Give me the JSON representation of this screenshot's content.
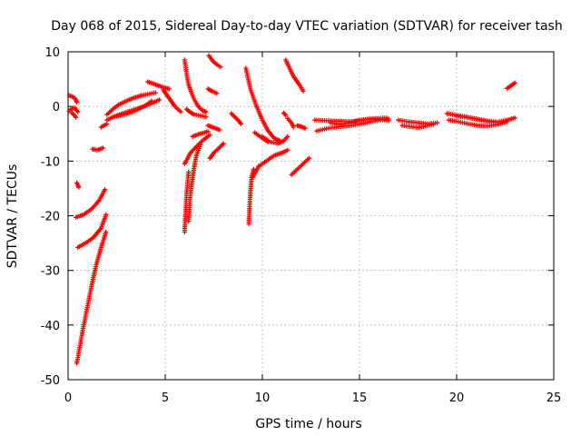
{
  "chart_data": {
    "type": "scatter",
    "title": "Day 068 of 2015, Sidereal Day-to-day VTEC variation (SDTVAR) for receiver tash",
    "xlabel": "GPS time / hours",
    "ylabel": "SDTVAR / TECUs",
    "xlim": [
      0,
      25
    ],
    "ylim": [
      -50,
      10
    ],
    "xticks": [
      0,
      5,
      10,
      15,
      20,
      25
    ],
    "yticks": [
      -50,
      -40,
      -30,
      -20,
      -10,
      0,
      10
    ],
    "grid": true,
    "marker": "+",
    "color": "#ff0000",
    "series": [
      {
        "name": "tash",
        "segments": [
          {
            "x": [
              0.05,
              0.2,
              0.35,
              0.45
            ],
            "y": [
              2.0,
              1.8,
              1.5,
              0.8
            ]
          },
          {
            "x": [
              0.05,
              0.2,
              0.35,
              0.5
            ],
            "y": [
              -0.8,
              -0.4,
              -0.3,
              -1.0
            ]
          },
          {
            "x": [
              0.2,
              0.3,
              0.4
            ],
            "y": [
              -1.2,
              -1.5,
              -2.0
            ]
          },
          {
            "x": [
              0.45,
              0.55
            ],
            "y": [
              -14.0,
              -14.8
            ]
          },
          {
            "x": [
              0.4,
              0.8,
              1.2,
              1.6,
              1.9
            ],
            "y": [
              -20.3,
              -19.8,
              -18.8,
              -17.2,
              -15.2
            ]
          },
          {
            "x": [
              0.5,
              0.9,
              1.3,
              1.7,
              1.95
            ],
            "y": [
              -25.8,
              -25.0,
              -24.0,
              -22.3,
              -19.8
            ]
          },
          {
            "x": [
              0.45,
              0.7,
              0.95,
              1.2,
              1.45,
              1.7,
              1.95
            ],
            "y": [
              -47.0,
              -42.0,
              -37.5,
              -33.0,
              -29.0,
              -25.8,
              -23.0
            ]
          },
          {
            "x": [
              1.25,
              1.5,
              1.8
            ],
            "y": [
              -7.8,
              -8.0,
              -7.6
            ]
          },
          {
            "x": [
              1.7,
              1.85,
              2.0
            ],
            "y": [
              -3.8,
              -3.5,
              -3.2
            ]
          },
          {
            "x": [
              2.0,
              2.3,
              2.6,
              3.0,
              3.4,
              3.8,
              4.2,
              4.5
            ],
            "y": [
              -1.5,
              -0.5,
              0.3,
              1.0,
              1.6,
              2.0,
              2.3,
              2.5
            ]
          },
          {
            "x": [
              2.0,
              2.4,
              2.9,
              3.4,
              3.9,
              4.3,
              4.7
            ],
            "y": [
              -2.5,
              -1.8,
              -1.2,
              -0.6,
              0.0,
              0.6,
              1.2
            ]
          },
          {
            "x": [
              2.5,
              3.0,
              3.5,
              4.0,
              4.3
            ],
            "y": [
              -1.8,
              -1.4,
              -0.7,
              0.2,
              1.0
            ]
          },
          {
            "x": [
              4.1,
              4.5,
              4.8,
              5.2
            ],
            "y": [
              4.5,
              4.0,
              3.6,
              3.2
            ]
          },
          {
            "x": [
              4.9,
              5.1,
              5.3,
              5.5,
              5.8
            ],
            "y": [
              3.0,
              2.0,
              1.0,
              0.0,
              -1.0
            ]
          },
          {
            "x": [
              6.0,
              6.1,
              6.2,
              6.35,
              6.5,
              6.7,
              6.9,
              7.1
            ],
            "y": [
              8.5,
              6.0,
              4.0,
              2.5,
              1.2,
              0.0,
              -0.7,
              -1.0
            ]
          },
          {
            "x": [
              6.1,
              6.3,
              6.5,
              6.8,
              7.1
            ],
            "y": [
              -0.5,
              -1.1,
              -1.5,
              -1.7,
              -1.9
            ]
          },
          {
            "x": [
              7.25,
              7.4,
              7.6,
              7.85
            ],
            "y": [
              9.3,
              8.5,
              7.8,
              7.2
            ]
          },
          {
            "x": [
              7.2,
              7.4,
              7.65
            ],
            "y": [
              3.2,
              2.8,
              2.4
            ]
          },
          {
            "x": [
              6.0,
              6.05,
              6.1,
              6.2
            ],
            "y": [
              -23.0,
              -19.5,
              -16.0,
              -12.0
            ]
          },
          {
            "x": [
              6.2,
              6.3,
              6.45,
              6.6,
              6.8
            ],
            "y": [
              -21.0,
              -16.0,
              -12.0,
              -9.0,
              -7.0
            ]
          },
          {
            "x": [
              6.0,
              6.3,
              6.7,
              7.0,
              7.3
            ],
            "y": [
              -10.5,
              -8.5,
              -7.0,
              -6.0,
              -5.2
            ]
          },
          {
            "x": [
              6.4,
              6.8,
              7.2
            ],
            "y": [
              -5.5,
              -5.0,
              -4.6
            ]
          },
          {
            "x": [
              7.3,
              7.5,
              7.8,
              8.0
            ],
            "y": [
              -9.5,
              -8.5,
              -7.5,
              -6.8
            ]
          },
          {
            "x": [
              7.2,
              7.5,
              7.8
            ],
            "y": [
              -3.5,
              -3.9,
              -4.3
            ]
          },
          {
            "x": [
              8.4,
              8.6,
              8.8,
              8.9
            ],
            "y": [
              -1.3,
              -2.0,
              -2.7,
              -3.2
            ]
          },
          {
            "x": [
              9.15,
              9.4,
              9.7,
              10.0,
              10.3,
              10.6,
              10.9
            ],
            "y": [
              7.0,
              3.0,
              0.0,
              -2.5,
              -4.5,
              -5.8,
              -6.3
            ]
          },
          {
            "x": [
              9.3,
              9.35,
              9.4,
              9.45,
              9.55
            ],
            "y": [
              -21.5,
              -18.0,
              -15.0,
              -13.0,
              -11.5
            ]
          },
          {
            "x": [
              9.5,
              9.8,
              10.2,
              10.6,
              11.0,
              11.3
            ],
            "y": [
              -13.0,
              -11.0,
              -10.0,
              -9.0,
              -8.5,
              -8.0
            ]
          },
          {
            "x": [
              9.6,
              10.0,
              10.3
            ],
            "y": [
              -4.8,
              -5.8,
              -6.5
            ]
          },
          {
            "x": [
              10.0,
              10.4,
              10.8,
              11.1,
              11.3
            ],
            "y": [
              -5.5,
              -6.5,
              -6.8,
              -6.3,
              -5.5
            ]
          },
          {
            "x": [
              11.1,
              11.2
            ],
            "y": [
              -1.2,
              -1.6
            ]
          },
          {
            "x": [
              11.2,
              11.4,
              11.6,
              11.9,
              12.1
            ],
            "y": [
              8.5,
              7.0,
              5.5,
              4.0,
              2.8
            ]
          },
          {
            "x": [
              11.3,
              11.5,
              11.6
            ],
            "y": [
              -2.2,
              -3.0,
              -3.8
            ]
          },
          {
            "x": [
              11.5,
              11.8,
              12.1,
              12.4
            ],
            "y": [
              -12.5,
              -11.5,
              -10.5,
              -9.5
            ]
          },
          {
            "x": [
              11.8,
              12.0,
              12.2
            ],
            "y": [
              -3.5,
              -3.7,
              -4.0
            ]
          },
          {
            "x": [
              12.8,
              13.4,
              14.0,
              14.6,
              15.2,
              15.8,
              16.5
            ],
            "y": [
              -4.5,
              -4.0,
              -3.7,
              -3.5,
              -3.1,
              -2.6,
              -2.3
            ]
          },
          {
            "x": [
              12.7,
              13.3,
              14.0,
              14.6,
              15.2,
              15.8,
              16.4
            ],
            "y": [
              -2.5,
              -2.6,
              -2.7,
              -2.8,
              -2.5,
              -2.2,
              -2.1
            ]
          },
          {
            "x": [
              13.5,
              14.0,
              14.5,
              15.0,
              15.5,
              16.0,
              16.5
            ],
            "y": [
              -3.0,
              -3.3,
              -3.0,
              -2.5,
              -2.3,
              -2.4,
              -2.6
            ]
          },
          {
            "x": [
              17.0,
              17.5,
              18.0,
              18.5,
              19.0
            ],
            "y": [
              -2.5,
              -2.8,
              -3.0,
              -3.2,
              -3.0
            ]
          },
          {
            "x": [
              17.2,
              17.6,
              18.0,
              18.4,
              18.8
            ],
            "y": [
              -3.5,
              -3.7,
              -3.9,
              -3.6,
              -3.3
            ]
          },
          {
            "x": [
              19.5,
              20.0,
              20.5,
              21.0,
              21.5,
              22.0,
              22.5,
              23.0
            ],
            "y": [
              -1.3,
              -1.6,
              -1.9,
              -2.3,
              -2.7,
              -2.9,
              -2.6,
              -2.1
            ]
          },
          {
            "x": [
              19.6,
              20.1,
              20.6,
              21.1,
              21.6,
              22.1,
              22.6
            ],
            "y": [
              -2.5,
              -2.8,
              -3.2,
              -3.5,
              -3.6,
              -3.3,
              -2.8
            ]
          },
          {
            "x": [
              20.0,
              20.5,
              21.0,
              21.5,
              22.0
            ],
            "y": [
              -1.8,
              -2.0,
              -2.3,
              -2.6,
              -2.8
            ]
          },
          {
            "x": [
              22.6,
              22.8,
              23.0
            ],
            "y": [
              3.3,
              3.8,
              4.3
            ]
          }
        ]
      }
    ]
  }
}
